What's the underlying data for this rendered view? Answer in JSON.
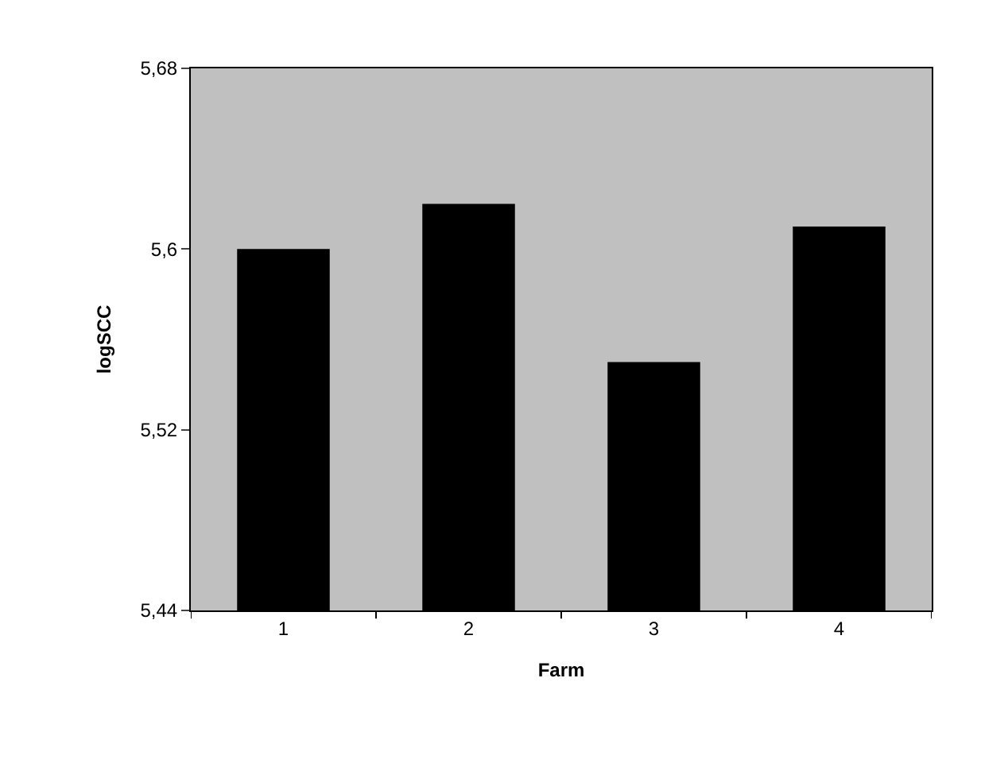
{
  "chart_data": {
    "type": "bar",
    "xlabel": "Farm",
    "ylabel": "logSCC",
    "categories": [
      "1",
      "2",
      "3",
      "4"
    ],
    "values": [
      5.6,
      5.62,
      5.55,
      5.61
    ],
    "color": "#000000",
    "ylim": [
      5.44,
      5.68
    ],
    "yticks": [
      {
        "value": 5.44,
        "label": "5,44"
      },
      {
        "value": 5.52,
        "label": "5,52"
      },
      {
        "value": 5.6,
        "label": "5,6"
      },
      {
        "value": 5.68,
        "label": "5,68"
      }
    ],
    "grid": false
  }
}
